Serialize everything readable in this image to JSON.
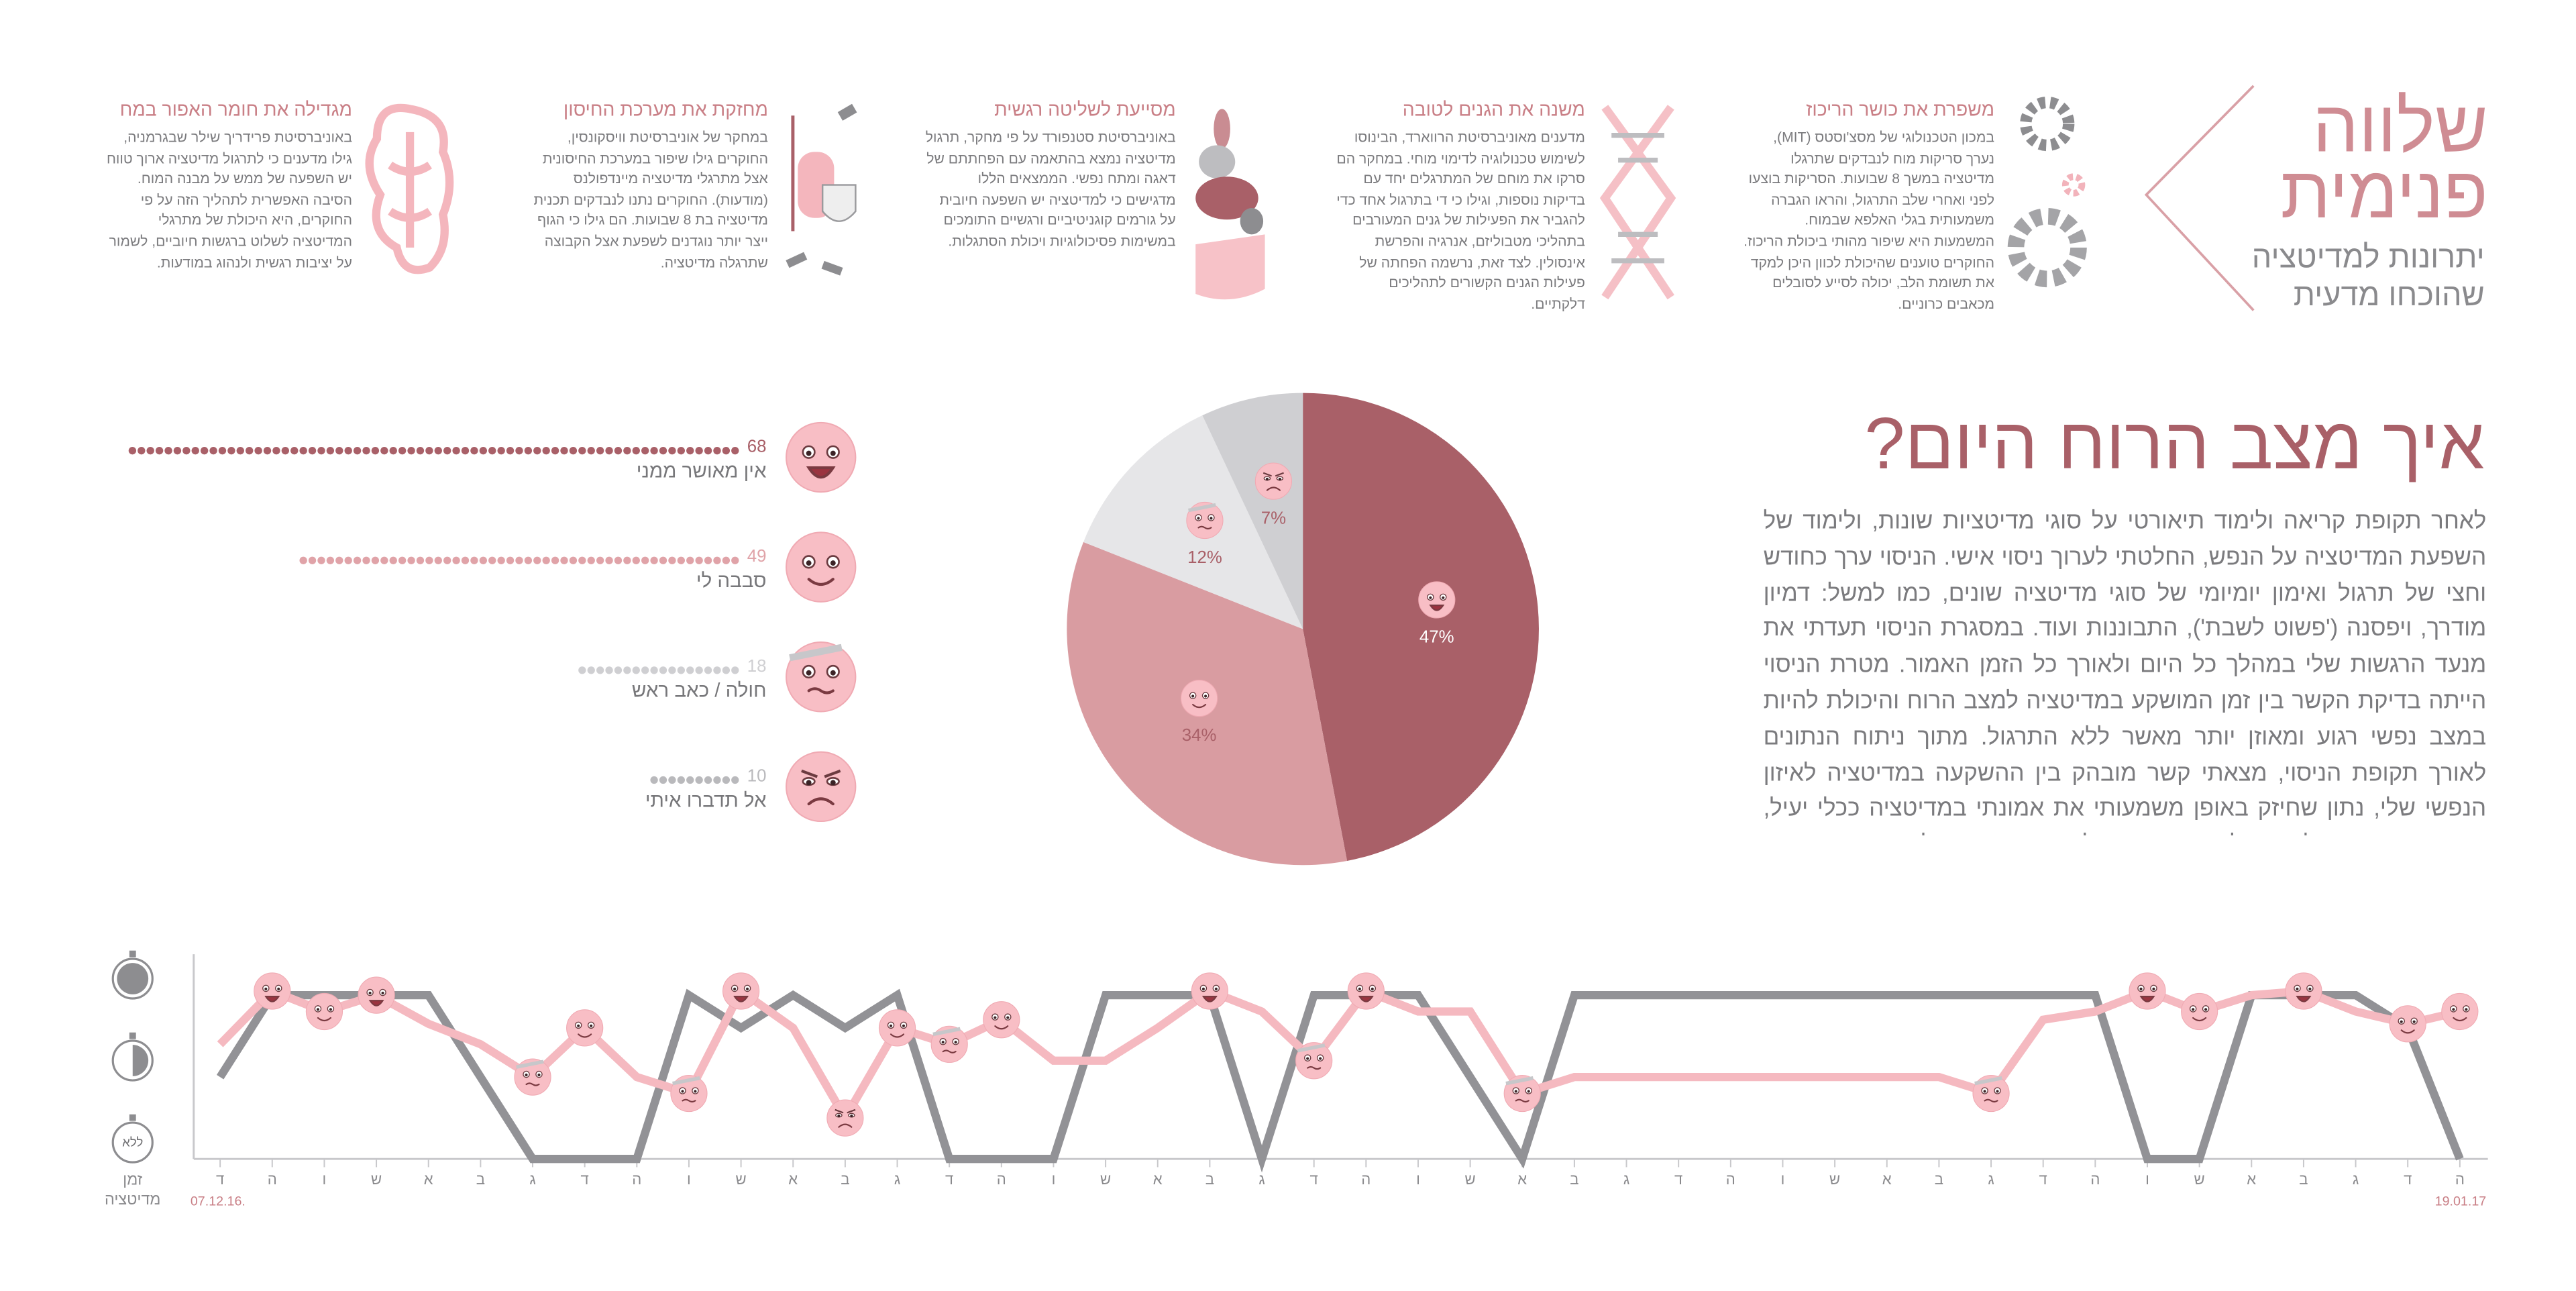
{
  "header": {
    "title_lines": [
      "שלווה",
      "פנימית"
    ],
    "subtitle_lines": [
      "יתרונות למדיטציה",
      "שהוכחו מדעית"
    ]
  },
  "benefits": [
    {
      "title": "משפרת את כושר הריכוז",
      "text": "במכון הטכנולוגי של מסצ'וסטס (MIT), נערך סריקות מוח לנבדקים שתרגלו מדיטציה במשך 8 שבועות. הסריקות בוצעו לפני ואחרי שלב התרגול, והראו הגברה משמעותית בגלי האלפא שבמוח. המשמעות היא שיפור מהותי ביכולת הריכוז. החוקרים טוענים שהיכולת לכוון היכן למקד את תשומת הלב, יכולה לסייע לסובלים מכאבים כרוניים."
    },
    {
      "title": "משנה את הגנים לטובה",
      "text": "מדענים מאוניברסיטת הרווארד, הבינוסו לשימוש טכנולוגיה לדימוי מוחי. במחקר הם סרקו את מוחם של המתרגלים יחד עם בדיקות נוספות, וגילו כי די בתרגול אחד כדי להגביר את הפעילות של גנים המעורבים בתהליכי מטבוליזם, אנרגיה והפרשת אינסולין. לצד זאת, נרשמה הפחתה של פעילות הגנים הקשורים לתהליכים דלקתיים."
    },
    {
      "title": "מסייעת לשליטה רגשית",
      "text": "באוניברסיטת סטנפורד על פי מחקר, תרגול מדיטציה נמצא בהתאמה עם הפחתתם של דאגה ומתח נפשי. הממצאים הללו מדגישים כי למדיטציה יש השפעה חיובית על גורמים קוגניטיביים ורגשיים התומכים במשימות פסיכולוגיות ויכולת הסתגלות."
    },
    {
      "title": "מחזקת את מערכת החיסון",
      "text": "במחקר של אוניברסיטת וויסקונסין, החוקרים גילו שיפור במערכת החיסונית אצל מתרגלי מדיטציה מיינדפולנס (מודעות). החוקרים נתנו לנבדקים תכנית מדיטציה בת 8 שבועות. הם גילו כי הגוף ייצר יותר נוגדנים לשפעת אצל הקבוצה שתרגלה מדיטציה."
    },
    {
      "title": "מגדילה את חומר האפור במח",
      "text": "באוניברסיטת פרידריך שילר שבגרמניה, גילו מדענים כי לתרגול מדיטציה ארוך טווח יש השפעה של ממש על מבנה המוח. הסיבה האפשרית לתהליך הזה על פי החוקרים, היא היכולת של מתרגלי המדיטציה לשלוט ברגשות חיוביים, לשמור על יציבות רגשית ולנהוג במודעות."
    }
  ],
  "article": {
    "title": "איך מצב הרוח היום?",
    "body": "לאחר תקופת קריאה ולימוד תיאורטי על סוגי מדיטציות שונות, ולימוד של השפעת המדיטציה על הנפש, החלטתי לערוך ניסוי אישי. הניסוי ערך כחודש וחצי של תרגול ואימון יומיומי של סוגי מדיטציה שונים, כמו למשל: דמיון מודרך, ויפסנה ('פשוט לשבת'), התבוננות ועוד. במסגרת הניסוי תעדתי את מנעד הרגשות שלי במהלך כל היום ולאורך כל הזמן האמור. מטרת הניסוי הייתה בדיקת הקשר בין זמן המושקע במדיטציה למצב הרוח והיכולת להיות במצב נפשי רגוע ומאוזן יותר מאשר ללא התרגול. מתוך ניתוח הנתונים לאורך תקופת הניסוי, מצאתי קשר מובהק בין ההשקעה במדיטציה לאיזון הנפשי שלי, נתון שחיזק באופן משמעותי את אמונתי במדיטציה ככלי יעיל, פשוט ואפקטיבי להפוך לאדם רגוע, שליו ומודע יותר לעצמי. מבחינתי, הגרסה הרגועה ושמחה יותר של עצמי, שווה את המאמץ."
  },
  "chart_data": [
    {
      "type": "pie",
      "values": [
        47,
        34,
        12,
        7
      ],
      "value_labels": [
        "47%",
        "34%",
        "12%",
        "7%"
      ],
      "colors": [
        "#a96068",
        "#d99ca1",
        "#e6e6e8",
        "#cfcfd2"
      ]
    },
    {
      "type": "bar",
      "orientation": "horizontal",
      "categories": [
        "אין מאושר ממני",
        "סבבה לי",
        "חולה / כאב ראש",
        "אל תדברו איתי"
      ],
      "values": [
        68,
        49,
        18,
        10
      ],
      "colors": [
        "#a96068",
        "#e0a3a8",
        "#cfcfd2",
        "#b9b9bc"
      ]
    },
    {
      "type": "line",
      "categories": [
        "ד",
        "ה",
        "ו",
        "ש",
        "א",
        "ב",
        "ג",
        "ד",
        "ה",
        "ו",
        "ש",
        "א",
        "ב",
        "ג",
        "ד",
        "ה",
        "ו",
        "ש",
        "א",
        "ב",
        "ג",
        "ד",
        "ה",
        "ו",
        "ש",
        "א",
        "ב",
        "ג",
        "ד",
        "ה",
        "ו",
        "ש",
        "א",
        "ב",
        "ג",
        "ד",
        "ה",
        "ו",
        "ש",
        "א",
        "ב",
        "ג",
        "ד",
        "ה"
      ],
      "annotations": [
        "07.12.16.",
        "19.01.17"
      ],
      "ylabel_lines": [
        "זמן",
        "מדיטציה"
      ],
      "ylim": [
        0,
        2.5
      ],
      "yticks": [
        {
          "value": 0,
          "label": "ללא"
        },
        1,
        2
      ],
      "series": [
        {
          "color": "#929296",
          "values": [
            1,
            2,
            2,
            2,
            2,
            1,
            0,
            0,
            0,
            2,
            1.6,
            2,
            1.6,
            2,
            0,
            0,
            0,
            2,
            2,
            2,
            0,
            2,
            2,
            2,
            1,
            0,
            2,
            2,
            2,
            2,
            2,
            2,
            2,
            2,
            2,
            2,
            2,
            0,
            0,
            2,
            2,
            2,
            1.6,
            0
          ]
        },
        {
          "color": "#f5b9c0",
          "values": [
            1.4,
            2.05,
            1.8,
            2,
            1.65,
            1.4,
            1,
            1.6,
            1,
            0.8,
            2.05,
            1.6,
            0.5,
            1.6,
            1.4,
            1.7,
            1.2,
            1.2,
            1.6,
            2.05,
            1.8,
            1.2,
            2.05,
            1.8,
            1.8,
            0.8,
            1,
            1,
            1,
            1,
            1,
            1,
            1,
            1,
            0.8,
            1.7,
            1.8,
            2.05,
            1.8,
            2,
            2.05,
            1.8,
            1.65,
            1.8
          ]
        }
      ]
    }
  ]
}
